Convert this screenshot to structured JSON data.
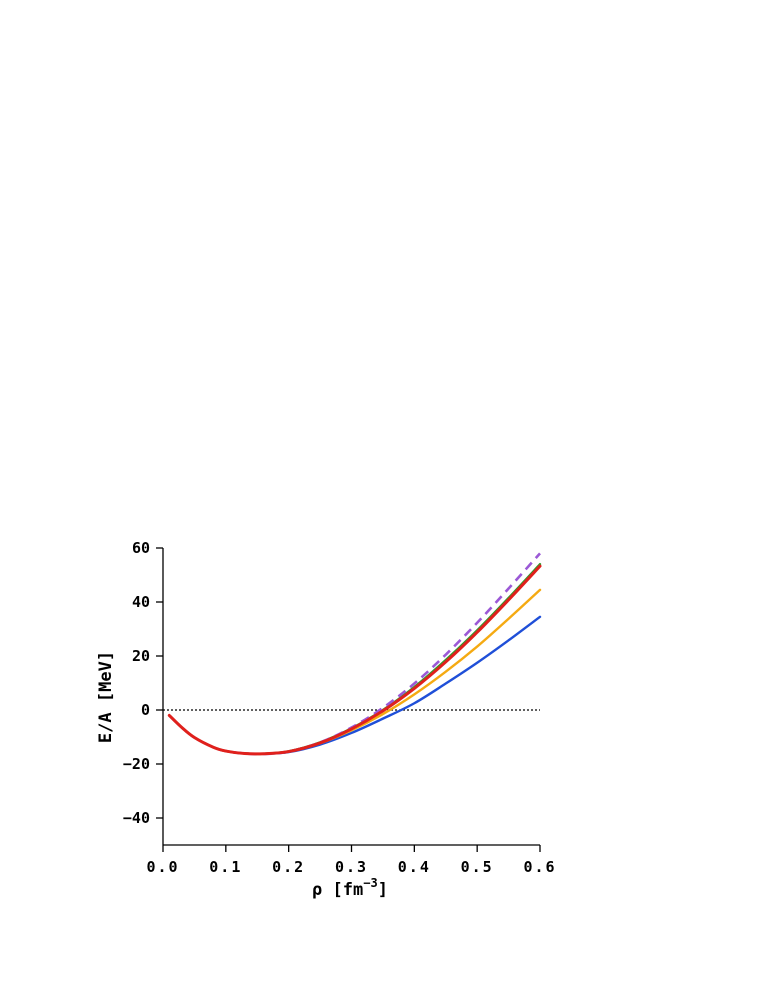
{
  "chart_data": {
    "type": "line",
    "xlabel": "ρ [fm",
    "xlabel_sup": "−3",
    "xlabel_end": "]",
    "ylabel": "E/A [MeV]",
    "xlim": [
      0.0,
      0.6
    ],
    "ylim": [
      -50,
      60
    ],
    "x_ticks": [
      0.0,
      0.1,
      0.2,
      0.3,
      0.4,
      0.5,
      0.6
    ],
    "x_tick_labels": [
      "0.0",
      "0.1",
      "0.2",
      "0.3",
      "0.4",
      "0.5",
      "0.6"
    ],
    "y_ticks": [
      -40,
      -20,
      0,
      20,
      40,
      60
    ],
    "y_tick_labels": [
      "−40",
      "−20",
      "0",
      "20",
      "40",
      "60"
    ],
    "reference_line": {
      "y": 0,
      "style": "dotted",
      "color": "#000000"
    },
    "grid": false,
    "series": [
      {
        "color": "#1f4fd8",
        "style": "solid",
        "x": [
          0.01,
          0.03,
          0.05,
          0.08,
          0.1,
          0.13,
          0.16,
          0.2,
          0.25,
          0.3,
          0.35,
          0.4,
          0.45,
          0.5,
          0.55,
          0.6
        ],
        "y": [
          -2.0,
          -6.5,
          -10.2,
          -13.8,
          -15.2,
          -16.1,
          -16.2,
          -15.6,
          -12.8,
          -8.5,
          -3.2,
          2.5,
          9.8,
          17.5,
          25.8,
          34.5
        ]
      },
      {
        "color": "#f5aa12",
        "style": "solid",
        "x": [
          0.01,
          0.03,
          0.05,
          0.08,
          0.1,
          0.13,
          0.16,
          0.2,
          0.25,
          0.3,
          0.35,
          0.4,
          0.45,
          0.5,
          0.55,
          0.6
        ],
        "y": [
          -2.0,
          -6.5,
          -10.2,
          -13.8,
          -15.2,
          -16.1,
          -16.2,
          -15.4,
          -12.3,
          -7.5,
          -1.5,
          5.8,
          14.2,
          23.5,
          33.8,
          44.5
        ]
      },
      {
        "color": "#2e9a2e",
        "style": "solid",
        "x": [
          0.01,
          0.03,
          0.05,
          0.08,
          0.1,
          0.13,
          0.16,
          0.2,
          0.25,
          0.3,
          0.35,
          0.4,
          0.45,
          0.5,
          0.55,
          0.6
        ],
        "y": [
          -2.0,
          -6.5,
          -10.2,
          -13.8,
          -15.2,
          -16.1,
          -16.2,
          -15.3,
          -12.0,
          -6.8,
          0.0,
          8.5,
          18.5,
          29.5,
          41.5,
          54.0
        ]
      },
      {
        "color": "#9b59d6",
        "style": "dashed",
        "x": [
          0.01,
          0.03,
          0.05,
          0.08,
          0.1,
          0.13,
          0.16,
          0.2,
          0.25,
          0.3,
          0.35,
          0.4,
          0.45,
          0.5,
          0.55,
          0.6
        ],
        "y": [
          -2.0,
          -6.5,
          -10.2,
          -13.8,
          -15.2,
          -16.1,
          -16.3,
          -15.4,
          -12.0,
          -6.5,
          0.8,
          9.8,
          20.5,
          32.3,
          45.0,
          58.0
        ]
      },
      {
        "color": "#e0201c",
        "style": "solid",
        "x": [
          0.01,
          0.03,
          0.05,
          0.08,
          0.1,
          0.13,
          0.16,
          0.2,
          0.25,
          0.3,
          0.35,
          0.4,
          0.45,
          0.5,
          0.55,
          0.6
        ],
        "y": [
          -2.0,
          -6.5,
          -10.2,
          -13.8,
          -15.2,
          -16.1,
          -16.2,
          -15.4,
          -12.2,
          -7.0,
          -0.3,
          8.0,
          17.8,
          28.8,
          40.8,
          53.3
        ]
      }
    ]
  }
}
